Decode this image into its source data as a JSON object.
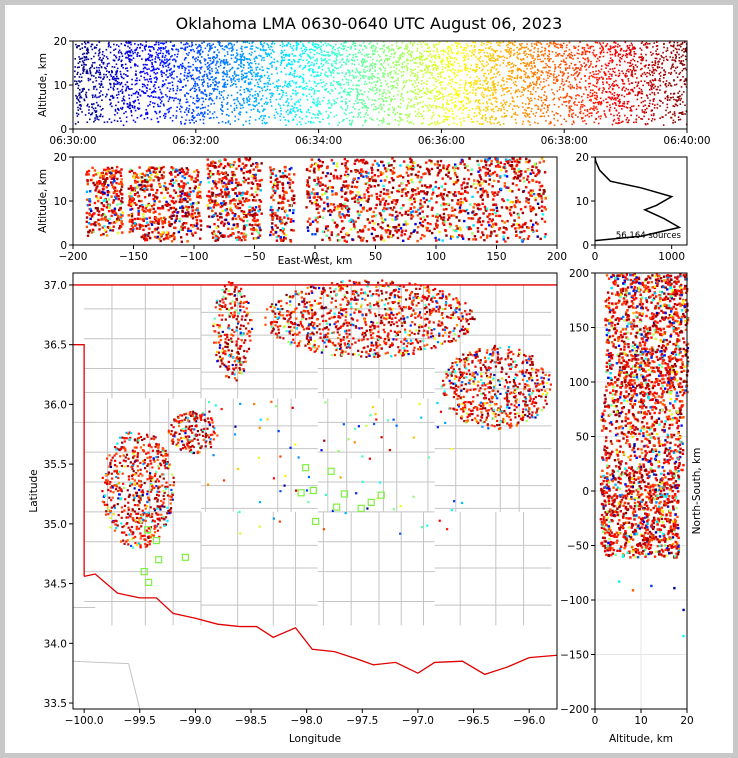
{
  "chart_data": [
    {
      "type": "scatter",
      "panel": "time-altitude",
      "title": "Oklahoma LMA 0630-0640 UTC August 06, 2023",
      "ylabel": "Altitude, km",
      "xlabel": "",
      "ylim": [
        0,
        20
      ],
      "yticks": [
        "0",
        "10",
        "20"
      ],
      "xticks": [
        "06:30:00",
        "06:32:00",
        "06:34:00",
        "06:36:00",
        "06:38:00",
        "06:40:00"
      ],
      "x_range": [
        "06:30:00",
        "06:40:00"
      ],
      "colormap": "jet (time)",
      "source_band_km": [
        1,
        20
      ]
    },
    {
      "type": "scatter",
      "panel": "east-west vs altitude",
      "xlabel": "East-West, km",
      "ylabel": "Altitude, km",
      "xlim": [
        -200,
        200
      ],
      "ylim": [
        0,
        20
      ],
      "xticks": [
        "−200",
        "−150",
        "−100",
        "−50",
        "0",
        "50",
        "100",
        "150",
        "200"
      ],
      "yticks": [
        "0",
        "10",
        "20"
      ],
      "clusters": [
        {
          "x": [
            -190,
            -160
          ],
          "alt": [
            2,
            18
          ]
        },
        {
          "x": [
            -155,
            -95
          ],
          "alt": [
            1,
            18
          ]
        },
        {
          "x": [
            -90,
            -45
          ],
          "alt": [
            1,
            20
          ]
        },
        {
          "x": [
            -38,
            -18
          ],
          "alt": [
            1,
            18
          ]
        },
        {
          "x": [
            -8,
            190
          ],
          "alt": [
            1,
            20
          ]
        }
      ]
    },
    {
      "type": "line",
      "panel": "altitude histogram",
      "annotation": "56,164 sources",
      "xlim": [
        0,
        1200
      ],
      "ylim": [
        0,
        20
      ],
      "xticks": [
        "0",
        "1000"
      ],
      "yticks": [
        "0",
        "10",
        "20"
      ],
      "profile": [
        [
          0,
          1
        ],
        [
          600,
          2
        ],
        [
          1100,
          4
        ],
        [
          900,
          6
        ],
        [
          650,
          8
        ],
        [
          800,
          9
        ],
        [
          1000,
          11
        ],
        [
          600,
          13
        ],
        [
          200,
          14.5
        ],
        [
          60,
          17
        ],
        [
          10,
          19
        ],
        [
          0,
          20
        ]
      ]
    },
    {
      "type": "scatter",
      "panel": "plan view",
      "xlabel": "Longitude",
      "ylabel": "Latitude",
      "xlim": [
        -100.1,
        -95.75
      ],
      "ylim": [
        33.45,
        37.1
      ],
      "xticks": [
        "−100.0",
        "−99.5",
        "−99.0",
        "−98.5",
        "−98.0",
        "−97.5",
        "−97.0",
        "−96.5",
        "−96.0"
      ],
      "yticks": [
        "33.5",
        "34.0",
        "34.5",
        "35.0",
        "35.5",
        "36.0",
        "36.5",
        "37.0"
      ],
      "lma_stations": [
        [
          -98.01,
          35.47
        ],
        [
          -97.78,
          35.44
        ],
        [
          -97.94,
          35.28
        ],
        [
          -97.66,
          35.25
        ],
        [
          -97.33,
          35.24
        ],
        [
          -97.42,
          35.18
        ],
        [
          -97.73,
          35.14
        ],
        [
          -97.51,
          35.13
        ],
        [
          -97.92,
          35.02
        ],
        [
          -98.05,
          35.26
        ],
        [
          -99.46,
          34.6
        ],
        [
          -99.42,
          34.51
        ],
        [
          -99.33,
          34.7
        ],
        [
          -99.09,
          34.72
        ],
        [
          -99.35,
          34.86
        ],
        [
          -99.43,
          34.95
        ]
      ],
      "clusters": [
        {
          "lon": [
            -99.85,
            -99.2
          ],
          "lat": [
            34.8,
            35.8
          ]
        },
        {
          "lon": [
            -99.25,
            -98.8
          ],
          "lat": [
            35.6,
            35.95
          ]
        },
        {
          "lon": [
            -98.85,
            -98.5
          ],
          "lat": [
            36.2,
            37.05
          ]
        },
        {
          "lon": [
            -98.4,
            -96.5
          ],
          "lat": [
            36.4,
            37.05
          ]
        },
        {
          "lon": [
            -96.8,
            -95.8
          ],
          "lat": [
            35.8,
            36.5
          ]
        }
      ]
    },
    {
      "type": "scatter",
      "panel": "altitude vs north-south",
      "xlabel": "Altitude, km",
      "ylabel": "North-South, km",
      "xlim": [
        0,
        20
      ],
      "ylim": [
        -200,
        200
      ],
      "xticks": [
        "0",
        "10",
        "20"
      ],
      "yticks": [
        "−200",
        "−150",
        "−100",
        "−50",
        "0",
        "50",
        "100",
        "150",
        "200"
      ],
      "clusters": [
        {
          "ns": [
            -60,
            20
          ],
          "alt": [
            1,
            18
          ]
        },
        {
          "ns": [
            20,
            90
          ],
          "alt": [
            1,
            19
          ]
        },
        {
          "ns": [
            90,
            200
          ],
          "alt": [
            2,
            20
          ]
        }
      ]
    }
  ]
}
